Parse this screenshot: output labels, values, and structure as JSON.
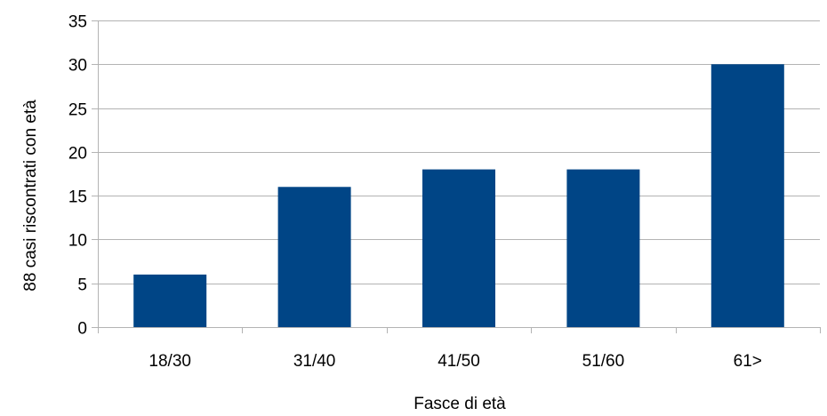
{
  "chart_data": {
    "type": "bar",
    "categories": [
      "18/30",
      "31/40",
      "41/50",
      "51/60",
      "61>"
    ],
    "values": [
      6,
      16,
      18,
      18,
      30
    ],
    "xlabel": "Fasce di età",
    "ylabel": "88 casi riscontrati con età",
    "ylim": [
      0,
      35
    ],
    "yticks": [
      0,
      5,
      10,
      15,
      20,
      25,
      30,
      35
    ],
    "grid": true,
    "legend": "none",
    "colors": {
      "bar": "#004586",
      "grid": "#b3b3b3",
      "axis": "#b3b3b3"
    }
  }
}
